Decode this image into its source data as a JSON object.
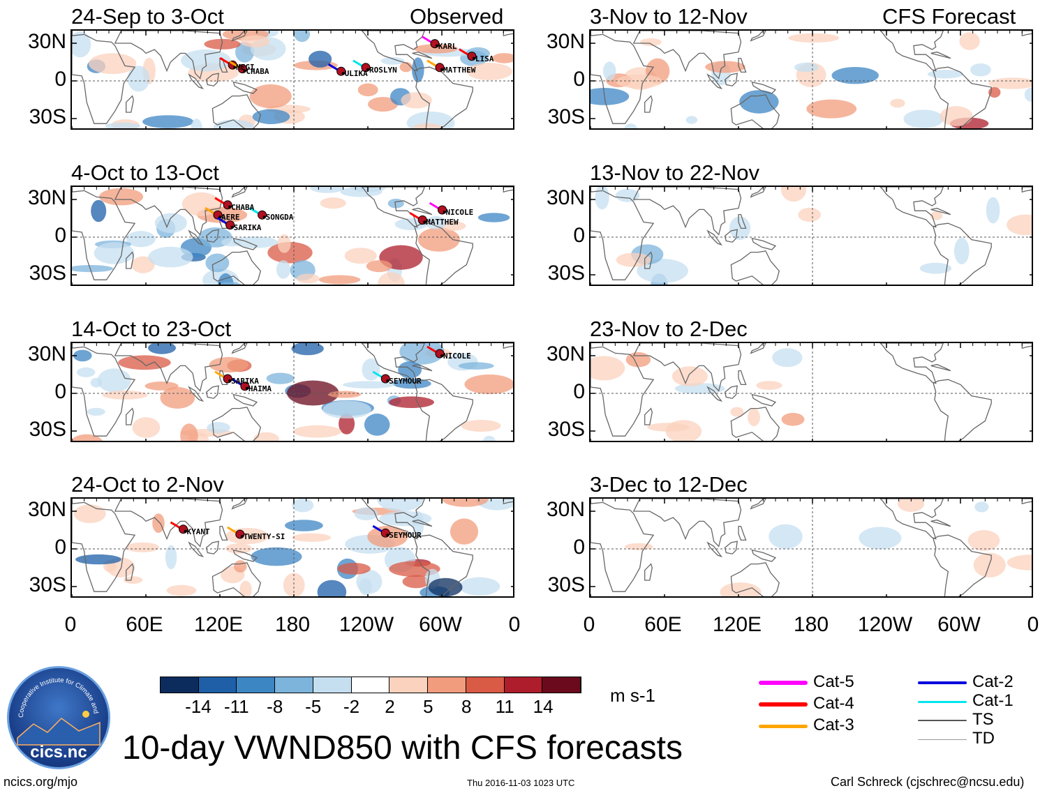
{
  "header": {
    "observed_label": "Observed",
    "forecast_label": "CFS Forecast"
  },
  "axes": {
    "lat_labels": [
      "30N",
      "0",
      "30S"
    ],
    "lon_labels": [
      "0",
      "60E",
      "120E",
      "180",
      "120W",
      "60W",
      "0"
    ]
  },
  "panels_observed": [
    {
      "title": "24-Sep to 3-Oct",
      "storms": [
        {
          "name": "MEGI",
          "lon": 132,
          "lat": 11
        },
        {
          "name": "CHABA",
          "lon": 140,
          "lat": 8
        },
        {
          "name": "ULIKA",
          "lon": 220,
          "lat": 6
        },
        {
          "name": "ROSLYN",
          "lon": 240,
          "lat": 9
        },
        {
          "name": "KARL",
          "lon": 296,
          "lat": 28
        },
        {
          "name": "LISA",
          "lon": 326,
          "lat": 18
        },
        {
          "name": "MATTHEW",
          "lon": 300,
          "lat": 9
        }
      ]
    },
    {
      "title": "4-Oct to 13-Oct",
      "storms": [
        {
          "name": "CHABA",
          "lon": 128,
          "lat": 24
        },
        {
          "name": "AERE",
          "lon": 120,
          "lat": 16
        },
        {
          "name": "SARIKA",
          "lon": 130,
          "lat": 8
        },
        {
          "name": "SONGDA",
          "lon": 156,
          "lat": 16
        },
        {
          "name": "NICOLE",
          "lon": 302,
          "lat": 20
        },
        {
          "name": "MATTHEW",
          "lon": 286,
          "lat": 12
        }
      ]
    },
    {
      "title": "14-Oct to 23-Oct",
      "storms": [
        {
          "name": "NICOLE",
          "lon": 300,
          "lat": 30
        },
        {
          "name": "SARIKA",
          "lon": 128,
          "lat": 10
        },
        {
          "name": "HAIMA",
          "lon": 142,
          "lat": 4
        },
        {
          "name": "SEYMOUR",
          "lon": 256,
          "lat": 10
        }
      ]
    },
    {
      "title": "24-Oct to 2-Nov",
      "storms": [
        {
          "name": "KYANT",
          "lon": 92,
          "lat": 14
        },
        {
          "name": "TWENTY-SI",
          "lon": 138,
          "lat": 10
        },
        {
          "name": "SEYMOUR",
          "lon": 256,
          "lat": 11
        }
      ]
    }
  ],
  "panels_forecast": [
    {
      "title": "3-Nov to 12-Nov"
    },
    {
      "title": "13-Nov to 22-Nov"
    },
    {
      "title": "23-Nov to 2-Dec"
    },
    {
      "title": "3-Dec to 12-Dec"
    }
  ],
  "colorbar": {
    "ticks": [
      "-14",
      "-11",
      "-8",
      "-5",
      "-2",
      "2",
      "5",
      "8",
      "11",
      "14"
    ],
    "colors": [
      "#0b2c5c",
      "#1e5fa8",
      "#3d86c4",
      "#7db4dc",
      "#c5dff0",
      "#ffffff",
      "#fbd2be",
      "#f19c7c",
      "#d95a45",
      "#ae1d2b",
      "#6b0a1c"
    ],
    "units": "m s-1"
  },
  "legend": [
    {
      "label": "Cat-5",
      "color": "#ff00ff",
      "width": 6
    },
    {
      "label": "Cat-4",
      "color": "#ff0000",
      "width": 6
    },
    {
      "label": "Cat-3",
      "color": "#ffa500",
      "width": 5
    },
    {
      "label": "Cat-2",
      "color": "#0000dd",
      "width": 4
    },
    {
      "label": "Cat-1",
      "color": "#00e5ee",
      "width": 3
    },
    {
      "label": "TS",
      "color": "#555555",
      "width": 2
    },
    {
      "label": "TD",
      "color": "#999999",
      "width": 1
    }
  ],
  "main_title": "10-day VWND850 with CFS forecasts",
  "logo": {
    "ring_text": "Cooperative Institute for Climate and Satellites",
    "brand": "cics.nc"
  },
  "footer": {
    "left": "ncics.org/mjo",
    "center": "Thu 2016-11-03 1023 UTC",
    "right": "Carl Schreck (cjschrec@ncsu.edu)"
  },
  "chart_data": {
    "type": "heatmap",
    "variable": "850-hPa meridional wind anomaly (VWND850), 10-day mean",
    "units": "m s-1",
    "x_range": [
      0,
      360
    ],
    "y_range": [
      -40,
      40
    ],
    "contour_levels": [
      -14,
      -11,
      -8,
      -5,
      -2,
      2,
      5,
      8,
      11,
      14
    ]
  }
}
